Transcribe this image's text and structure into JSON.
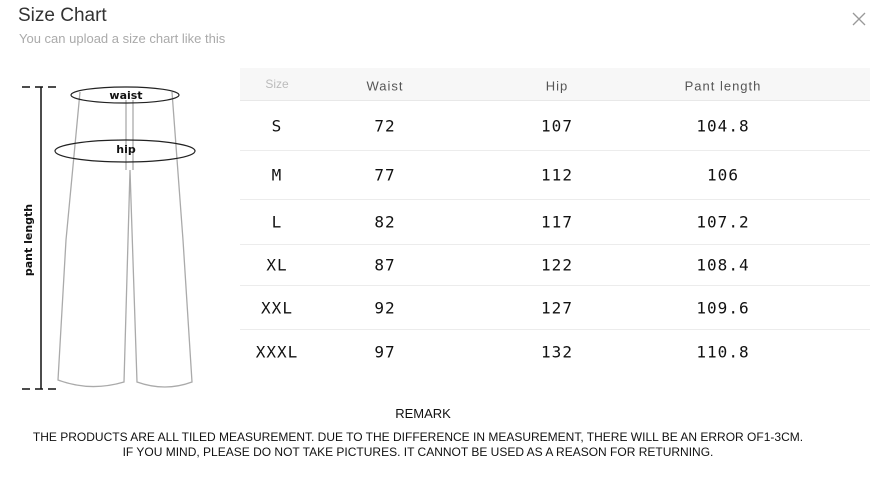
{
  "header": {
    "title": "Size Chart",
    "subtitle": "You can upload a size chart like this",
    "close_icon": "close-icon"
  },
  "illustration": {
    "waist_label": "waist",
    "hip_label": "hip",
    "length_label": "pant length"
  },
  "table": {
    "columns": [
      "Size",
      "Waist",
      "Hip",
      "Pant length"
    ],
    "rows": [
      [
        "S",
        "72",
        "107",
        "104.8"
      ],
      [
        "M",
        "77",
        "112",
        "106"
      ],
      [
        "L",
        "82",
        "117",
        "107.2"
      ],
      [
        "XL",
        "87",
        "122",
        "108.4"
      ],
      [
        "XXL",
        "92",
        "127",
        "109.6"
      ],
      [
        "XXXL",
        "97",
        "132",
        "110.8"
      ]
    ]
  },
  "remark": {
    "title": "REMARK",
    "line1": "THE PRODUCTS ARE ALL TILED MEASUREMENT. DUE TO THE DIFFERENCE IN MEASUREMENT, THERE WILL BE AN ERROR OF1-3CM.",
    "line2": "IF YOU MIND, PLEASE DO NOT TAKE PICTURES. IT CANNOT BE USED AS A REASON FOR RETURNING."
  }
}
